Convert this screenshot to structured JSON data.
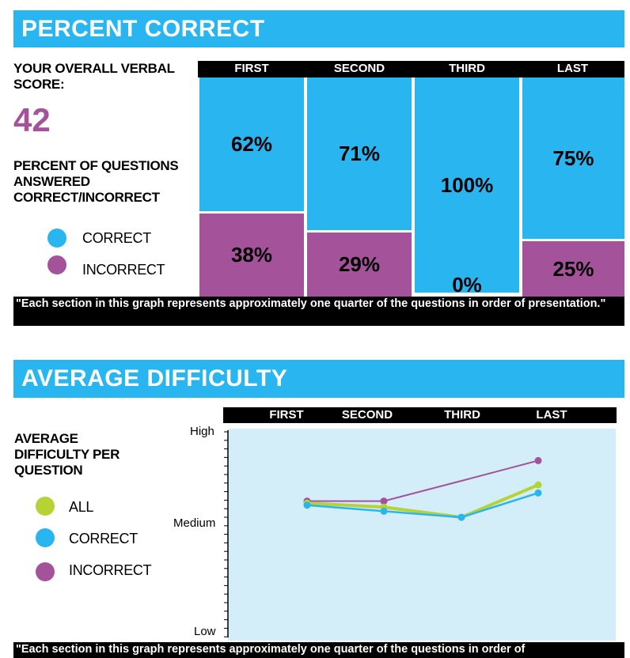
{
  "section1": {
    "banner": "PERCENT CORRECT",
    "overall_label": "YOUR OVERALL VERBAL SCORE:",
    "score": "42",
    "pct_label": "PERCENT OF QUESTIONS ANSWERED CORRECT/INCORRECT",
    "legend": [
      {
        "label": "CORRECT",
        "color": "#29b5f0"
      },
      {
        "label": "INCORRECT",
        "color": "#a4529a"
      }
    ],
    "note": "\"Each section in this graph represents approximately one quarter of the questions in order of presentation.\""
  },
  "section2": {
    "banner": "AVERAGE DIFFICULTY",
    "label": "AVERAGE DIFFICULTY PER QUESTION",
    "legend": [
      {
        "label": "ALL",
        "color": "#b5d334"
      },
      {
        "label": "CORRECT",
        "color": "#29b5f0"
      },
      {
        "label": "INCORRECT",
        "color": "#a4529a"
      }
    ],
    "note": "\"Each section in this graph represents approximately one quarter of the questions in order of"
  },
  "chart_data": [
    {
      "type": "bar",
      "title": "PERCENT CORRECT",
      "categories": [
        "FIRST",
        "SECOND",
        "THIRD",
        "LAST"
      ],
      "series": [
        {
          "name": "CORRECT",
          "values": [
            62,
            71,
            100,
            75
          ],
          "labels": [
            "62%",
            "71%",
            "100%",
            "75%"
          ],
          "color": "#29b5f0"
        },
        {
          "name": "INCORRECT",
          "values": [
            38,
            29,
            0,
            25
          ],
          "labels": [
            "38%",
            "29%",
            "0%",
            "25%"
          ],
          "color": "#a4529a"
        }
      ],
      "stacked": true,
      "ylim": [
        0,
        100
      ]
    },
    {
      "type": "line",
      "title": "AVERAGE DIFFICULTY",
      "categories": [
        "FIRST",
        "SECOND",
        "THIRD",
        "LAST"
      ],
      "yticks": [
        "High",
        "Medium",
        "Low"
      ],
      "ylim": [
        0,
        100
      ],
      "series": [
        {
          "name": "ALL",
          "values": [
            64,
            62,
            57,
            73
          ],
          "color": "#b5d334"
        },
        {
          "name": "CORRECT",
          "values": [
            63,
            60,
            57,
            69
          ],
          "color": "#29b5f0"
        },
        {
          "name": "INCORRECT",
          "values": [
            65,
            65,
            null,
            85
          ],
          "color": "#a4529a"
        }
      ]
    }
  ]
}
